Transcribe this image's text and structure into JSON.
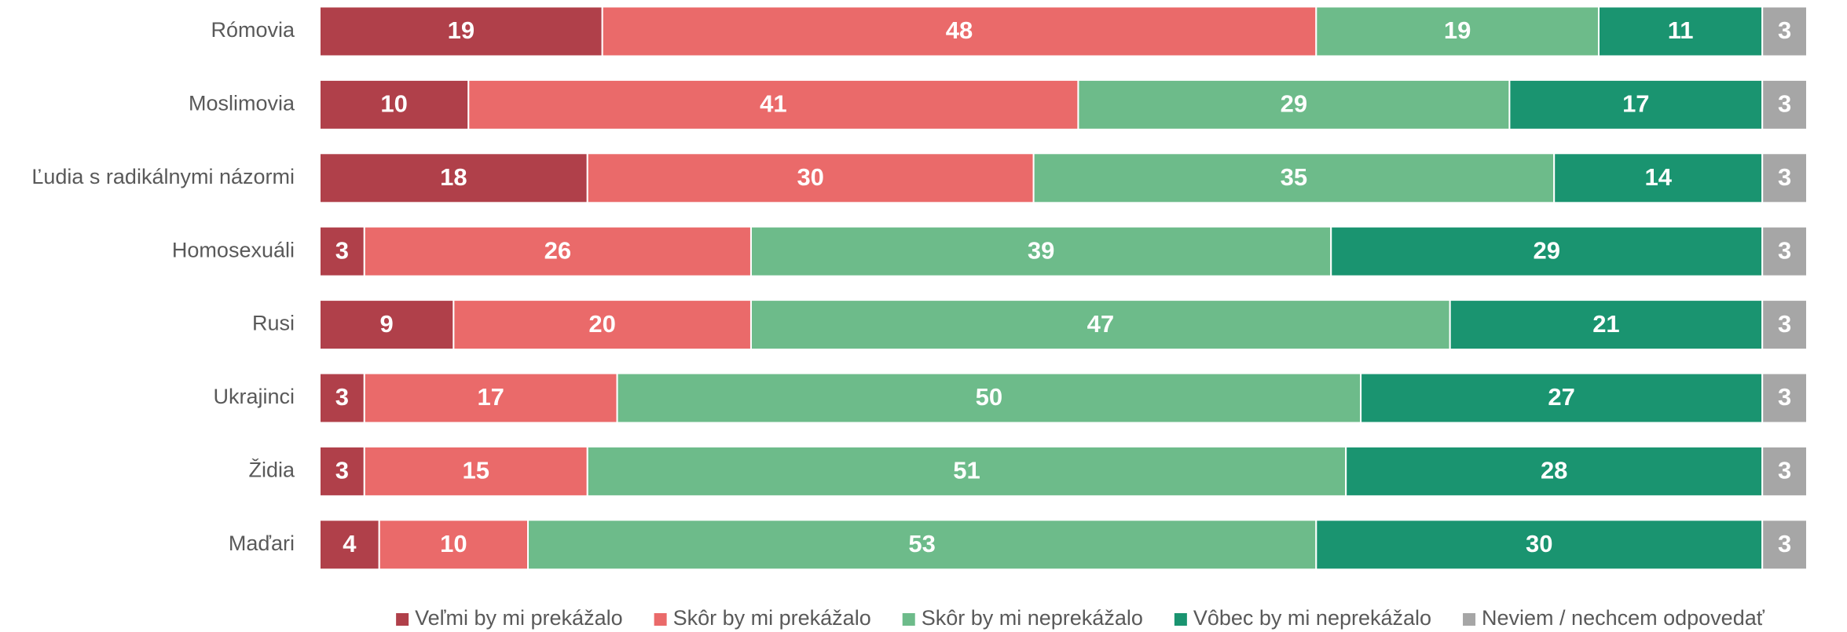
{
  "chart_data": {
    "type": "stacked-barh",
    "categories": [
      "Rómovia",
      "Moslimovia",
      "Ľudia s radikálnymi názormi",
      "Homosexuáli",
      "Rusi",
      "Ukrajinci",
      "Židia",
      "Maďari"
    ],
    "series": [
      {
        "name": "Veľmi by mi prekážalo",
        "color": "#b0404a",
        "values": [
          19,
          10,
          18,
          3,
          9,
          3,
          3,
          4
        ]
      },
      {
        "name": "Skôr by mi prekážalo",
        "color": "#ea6a6a",
        "values": [
          48,
          41,
          30,
          26,
          20,
          17,
          15,
          10
        ]
      },
      {
        "name": "Skôr by mi neprekážalo",
        "color": "#6dbb8a",
        "values": [
          19,
          29,
          35,
          39,
          47,
          50,
          51,
          53
        ]
      },
      {
        "name": "Vôbec by mi neprekážalo",
        "color": "#1a9470",
        "values": [
          11,
          17,
          14,
          29,
          21,
          27,
          28,
          30
        ]
      },
      {
        "name": "Neviem / nechcem odpovedať",
        "color": "#a6a6a6",
        "values": [
          3,
          3,
          3,
          3,
          3,
          3,
          3,
          3
        ]
      }
    ],
    "xlim": [
      0,
      100
    ],
    "legend": "bottom"
  }
}
